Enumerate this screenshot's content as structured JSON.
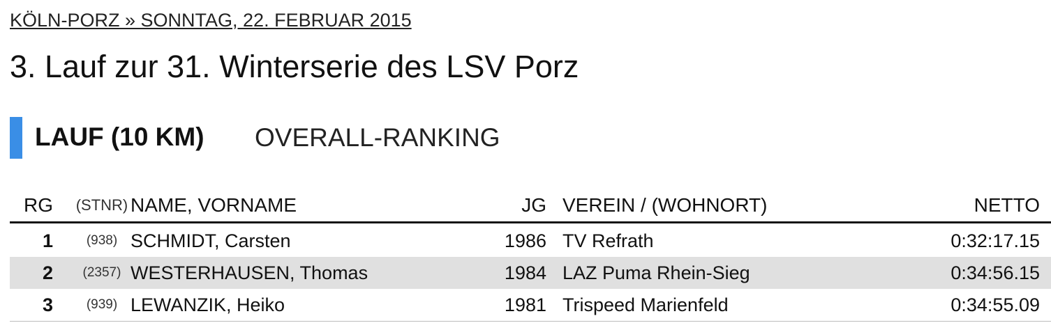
{
  "header": {
    "location_date": "KÖLN-PORZ » SONNTAG, 22. FEBRUAR 2015",
    "title": "3. Lauf zur 31. Winterserie des LSV Porz"
  },
  "section": {
    "name": "LAUF (10 KM)",
    "subtitle": "OVERALL-RANKING"
  },
  "table": {
    "headers": [
      "RG",
      "(STNR)",
      "NAME, VORNAME",
      "JG",
      "VEREIN / (WOHNORT)",
      "NETTO"
    ],
    "rows": [
      [
        "1",
        "(938)",
        "SCHMIDT, Carsten",
        "1986",
        "TV Refrath",
        "0:32:17.15"
      ],
      [
        "2",
        "(2357)",
        "WESTERHAUSEN, Thomas",
        "1984",
        "LAZ Puma Rhein-Sieg",
        "0:34:56.15"
      ],
      [
        "3",
        "(939)",
        "LEWANZIK, Heiko",
        "1981",
        "Trispeed Marienfeld",
        "0:34:55.09"
      ]
    ]
  }
}
